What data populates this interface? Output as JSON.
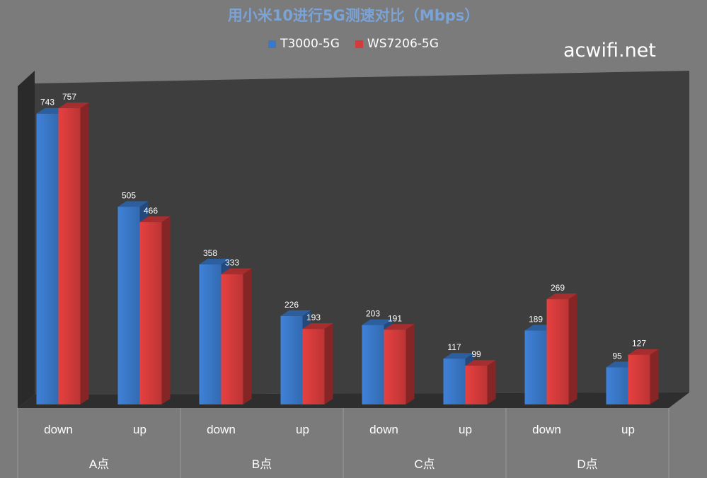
{
  "chart_data": {
    "type": "bar",
    "title": "用小米10进行5G测速对比（Mbps）",
    "watermark": "acwifi.net",
    "groups": [
      "A点",
      "B点",
      "C点",
      "D点"
    ],
    "categories": [
      "down",
      "up",
      "down",
      "up",
      "down",
      "up",
      "down",
      "up"
    ],
    "category_groups": [
      "A点",
      "A点",
      "B点",
      "B点",
      "C点",
      "C点",
      "D点",
      "D点"
    ],
    "series": [
      {
        "name": "T3000-5G",
        "color": "#3a78c9",
        "values": [
          743,
          505,
          358,
          226,
          203,
          117,
          189,
          95
        ]
      },
      {
        "name": "WS7206-5G",
        "color": "#d63b3b",
        "values": [
          757,
          466,
          333,
          193,
          191,
          99,
          269,
          127
        ]
      }
    ],
    "ylim": [
      0,
      800
    ],
    "grid": false,
    "legend_position": "top",
    "background_color": "#7b7b7b",
    "plot_background_color": "#3e3e3e"
  }
}
